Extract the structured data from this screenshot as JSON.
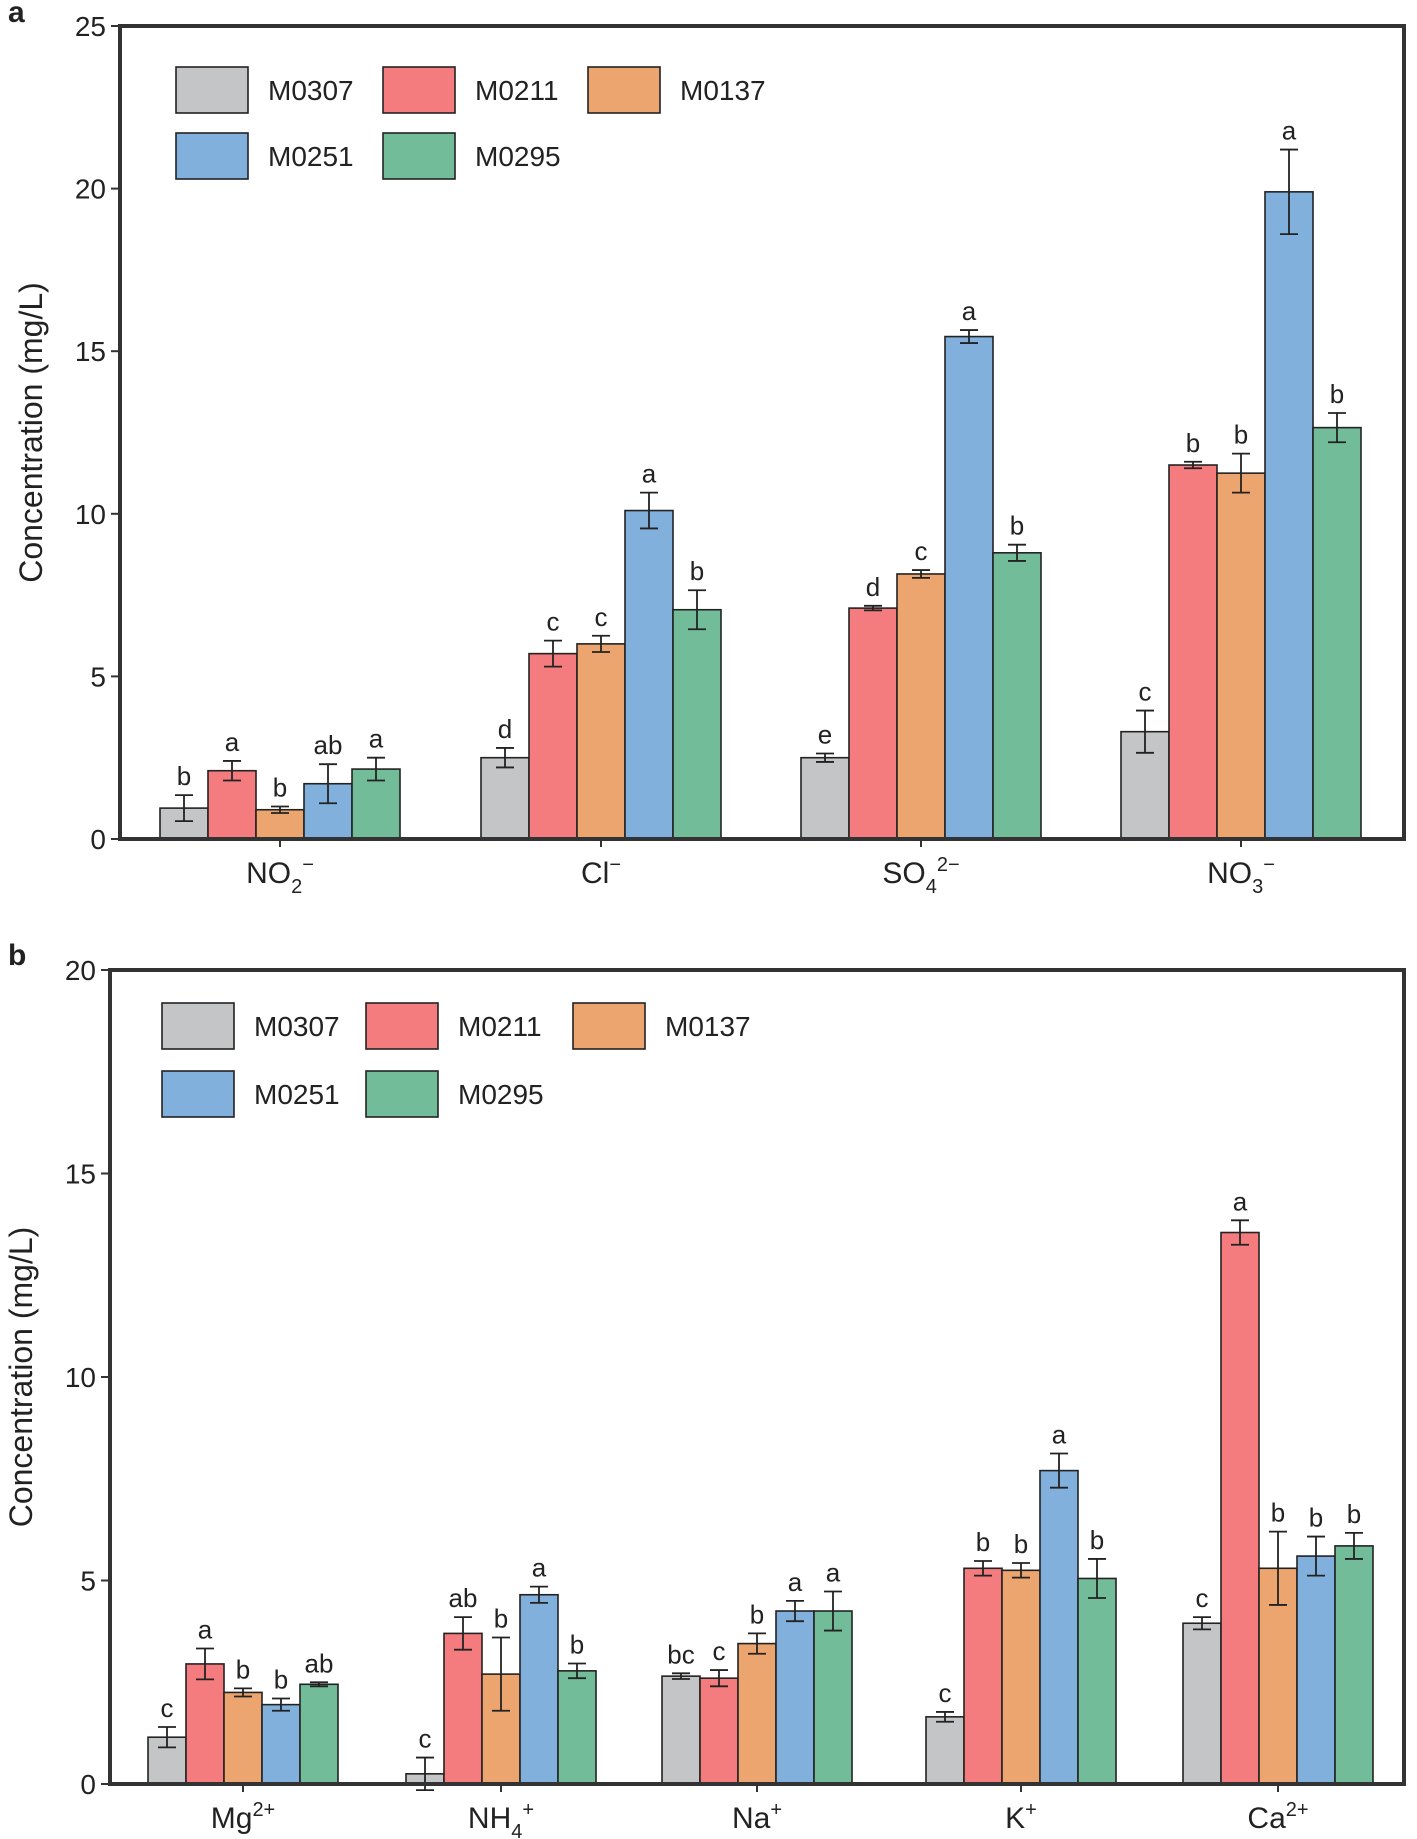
{
  "series_colors": {
    "M0307": "#c4c5c7",
    "M0211": "#f47c7e",
    "M0137": "#eca56e",
    "M0251": "#82b0dc",
    "M0295": "#72bc99"
  },
  "chart_data": [
    {
      "type": "bar",
      "panel": "a",
      "ylabel": "Concentration (mg/L)",
      "xlabel": "",
      "ylim": [
        0,
        25
      ],
      "yticks": [
        "0",
        "5",
        "10",
        "15",
        "20",
        "25"
      ],
      "legend": [
        "M0307",
        "M0211",
        "M0137",
        "M0251",
        "M0295"
      ],
      "categories": [
        {
          "base": "NO",
          "sub": "2",
          "sup": "−"
        },
        {
          "base": "Cl",
          "sub": "",
          "sup": "−"
        },
        {
          "base": "SO",
          "sub": "4",
          "sup": "2−"
        },
        {
          "base": "NO",
          "sub": "3",
          "sup": "−"
        }
      ],
      "series": [
        {
          "name": "M0307",
          "values": [
            0.95,
            2.5,
            2.5,
            3.3
          ],
          "errors": [
            0.4,
            0.3,
            0.13,
            0.65
          ],
          "letters": [
            "b",
            "d",
            "e",
            "c"
          ]
        },
        {
          "name": "M0211",
          "values": [
            2.1,
            5.7,
            7.1,
            11.5
          ],
          "errors": [
            0.3,
            0.4,
            0.07,
            0.1
          ],
          "letters": [
            "a",
            "c",
            "d",
            "b"
          ]
        },
        {
          "name": "M0137",
          "values": [
            0.9,
            6.0,
            8.15,
            11.25
          ],
          "errors": [
            0.1,
            0.25,
            0.12,
            0.6
          ],
          "letters": [
            "b",
            "c",
            "c",
            "b"
          ]
        },
        {
          "name": "M0251",
          "values": [
            1.7,
            10.1,
            15.45,
            19.9
          ],
          "errors": [
            0.6,
            0.55,
            0.2,
            1.3
          ],
          "letters": [
            "ab",
            "a",
            "a",
            "a"
          ]
        },
        {
          "name": "M0295",
          "values": [
            2.15,
            7.05,
            8.8,
            12.65
          ],
          "errors": [
            0.35,
            0.6,
            0.25,
            0.45
          ],
          "letters": [
            "a",
            "b",
            "b",
            "b"
          ]
        }
      ]
    },
    {
      "type": "bar",
      "panel": "b",
      "ylabel": "Concentration (mg/L)",
      "xlabel": "",
      "ylim": [
        0,
        20
      ],
      "yticks": [
        "0",
        "5",
        "10",
        "15",
        "20"
      ],
      "legend": [
        "M0307",
        "M0211",
        "M0137",
        "M0251",
        "M0295"
      ],
      "categories": [
        {
          "base": "Mg",
          "sub": "",
          "sup": "2+"
        },
        {
          "base": "NH",
          "sub": "4",
          "sup": "+"
        },
        {
          "base": "Na",
          "sub": "",
          "sup": "+"
        },
        {
          "base": "K",
          "sub": "",
          "sup": "+"
        },
        {
          "base": "Ca",
          "sub": "",
          "sup": "2+"
        }
      ],
      "series": [
        {
          "name": "M0307",
          "values": [
            1.15,
            0.25,
            2.65,
            1.65,
            3.95
          ],
          "errors": [
            0.25,
            0.4,
            0.07,
            0.12,
            0.15
          ],
          "letters": [
            "c",
            "c",
            "bc",
            "c",
            "c"
          ]
        },
        {
          "name": "M0211",
          "values": [
            2.95,
            3.7,
            2.6,
            5.3,
            13.55
          ],
          "errors": [
            0.38,
            0.4,
            0.2,
            0.18,
            0.3
          ],
          "letters": [
            "a",
            "ab",
            "c",
            "b",
            "a"
          ]
        },
        {
          "name": "M0137",
          "values": [
            2.25,
            2.7,
            3.45,
            5.25,
            5.3
          ],
          "errors": [
            0.1,
            0.9,
            0.25,
            0.18,
            0.9
          ],
          "letters": [
            "b",
            "b",
            "b",
            "b",
            "b"
          ]
        },
        {
          "name": "M0251",
          "values": [
            1.95,
            4.65,
            4.25,
            7.7,
            5.6
          ],
          "errors": [
            0.15,
            0.2,
            0.25,
            0.42,
            0.48
          ],
          "letters": [
            "b",
            "a",
            "a",
            "a",
            "b"
          ]
        },
        {
          "name": "M0295",
          "values": [
            2.45,
            2.78,
            4.25,
            5.05,
            5.85
          ],
          "errors": [
            0.05,
            0.18,
            0.48,
            0.48,
            0.32
          ],
          "letters": [
            "ab",
            "b",
            "a",
            "b",
            "b"
          ]
        }
      ]
    }
  ]
}
